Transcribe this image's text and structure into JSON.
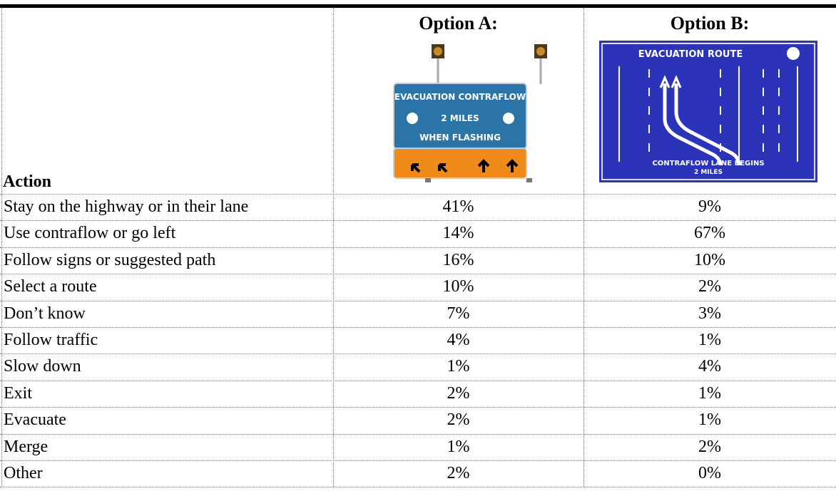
{
  "table": {
    "header": {
      "action": "Action",
      "options": [
        {
          "label": "Option A:",
          "sign": [
            "EVACUATION CONTRAFLOW",
            "2 MILES",
            "WHEN FLASHING"
          ]
        },
        {
          "label": "Option B:",
          "sign": [
            "EVACUATION ROUTE",
            "CONTRAFLOW LANE BEGINS",
            "2 MILES"
          ]
        }
      ]
    },
    "rows": [
      [
        "Stay on the highway or in their lane",
        "41%",
        "9%"
      ],
      [
        "Use contraflow or go left",
        "14%",
        "67%"
      ],
      [
        "Follow signs or suggested path",
        "16%",
        "10%"
      ],
      [
        "Select a route",
        "10%",
        "2%"
      ],
      [
        "Don’t know",
        "7%",
        "3%"
      ],
      [
        "Follow traffic",
        "4%",
        "1%"
      ],
      [
        "Slow down",
        "1%",
        "4%"
      ],
      [
        "Exit",
        "2%",
        "1%"
      ],
      [
        "Evacuate",
        "2%",
        "1%"
      ],
      [
        "Merge",
        "1%",
        "2%"
      ],
      [
        "Other",
        "2%",
        "0%"
      ]
    ]
  }
}
